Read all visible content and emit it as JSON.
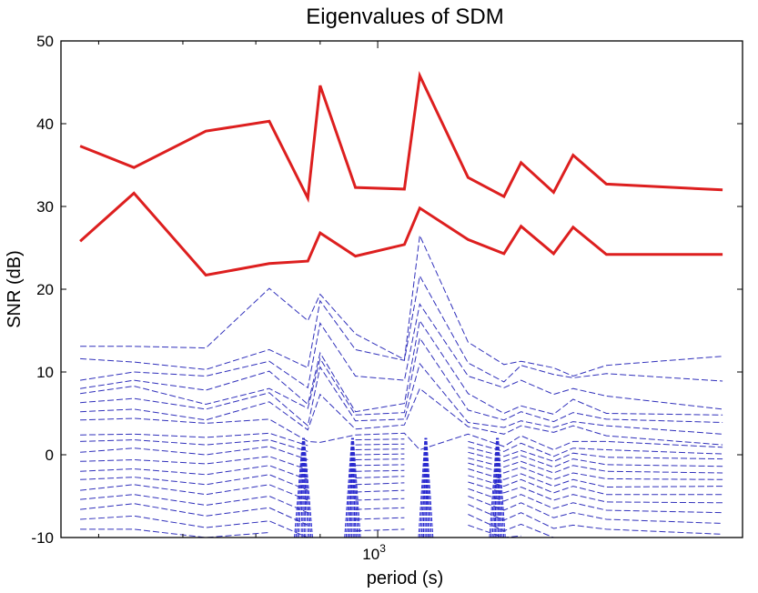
{
  "chart_data": {
    "type": "line",
    "title": "Eigenvalues of SDM",
    "xlabel": "period (s)",
    "ylabel": "SNR (dB)",
    "xscale": "log",
    "xlim": [
      560,
      1950
    ],
    "ylim": [
      -10,
      50
    ],
    "yticks": [
      -10,
      0,
      10,
      20,
      30,
      40,
      50
    ],
    "xtick_label_base": "10",
    "xtick_label_exp": "3",
    "xtick_value": 1000,
    "grid": false,
    "x": [
      580,
      640,
      730,
      820,
      880,
      900,
      960,
      1050,
      1080,
      1180,
      1260,
      1300,
      1380,
      1430,
      1520,
      1880
    ],
    "series": [
      {
        "color": "#dd1f1f",
        "style": "solid",
        "values": [
          37.3,
          34.7,
          39.1,
          40.3,
          31.0,
          44.6,
          32.3,
          32.1,
          45.8,
          33.5,
          31.2,
          35.3,
          31.7,
          36.2,
          32.7,
          32.0
        ]
      },
      {
        "color": "#dd1f1f",
        "style": "solid",
        "values": [
          25.8,
          31.6,
          21.7,
          23.1,
          23.4,
          26.8,
          24.0,
          25.4,
          29.8,
          26.0,
          24.3,
          27.6,
          24.3,
          27.5,
          24.2,
          24.2
        ]
      },
      {
        "color": "#3030bb",
        "style": "dashed",
        "values": [
          13.1,
          13.1,
          12.9,
          20.1,
          16.2,
          19.4,
          14.6,
          11.5,
          26.5,
          13.6,
          10.9,
          11.3,
          10.5,
          9.5,
          10.8,
          11.9
        ]
      },
      {
        "color": "#3030bb",
        "style": "dashed",
        "values": [
          11.6,
          11.2,
          10.3,
          12.7,
          10.5,
          18.6,
          12.7,
          11.4,
          21.6,
          11.1,
          8.8,
          10.8,
          9.7,
          9.3,
          9.8,
          8.9
        ]
      },
      {
        "color": "#3030bb",
        "style": "dashed",
        "values": [
          9.0,
          10.0,
          9.5,
          11.3,
          8.1,
          15.9,
          9.5,
          9.0,
          18.2,
          9.5,
          8.1,
          9.0,
          7.3,
          8.0,
          7.1,
          5.5
        ]
      },
      {
        "color": "#3030bb",
        "style": "dashed",
        "values": [
          8.0,
          9.0,
          7.8,
          10.1,
          6.1,
          12.3,
          5.2,
          6.2,
          16.2,
          7.4,
          5.0,
          5.9,
          4.9,
          6.7,
          5.0,
          4.8
        ]
      },
      {
        "color": "#3030bb",
        "style": "dashed",
        "values": [
          7.4,
          8.3,
          6.1,
          8.0,
          5.6,
          11.6,
          4.8,
          5.1,
          14.1,
          5.4,
          4.2,
          5.2,
          4.0,
          5.1,
          4.3,
          3.9
        ]
      },
      {
        "color": "#3030bb",
        "style": "dashed",
        "values": [
          6.3,
          6.8,
          5.5,
          7.5,
          3.5,
          10.6,
          4.1,
          4.3,
          11.0,
          3.9,
          3.3,
          4.1,
          3.3,
          4.0,
          3.5,
          2.5
        ]
      },
      {
        "color": "#3030bb",
        "style": "dashed",
        "values": [
          5.2,
          5.5,
          4.2,
          6.4,
          3.0,
          7.3,
          3.1,
          3.6,
          8.0,
          3.4,
          2.5,
          3.5,
          2.7,
          3.5,
          2.3,
          1.2
        ]
      },
      {
        "color": "#3030bb",
        "style": "dashed",
        "values": [
          4.2,
          4.4,
          3.8,
          4.3,
          1.6,
          1.5,
          2.4,
          2.6,
          0.6,
          2.5,
          1.0,
          2.3,
          0.6,
          1.6,
          1.6,
          0.9
        ]
      },
      {
        "color": "#3030bb",
        "style": "dashed",
        "values": [
          2.4,
          2.5,
          2.1,
          2.6,
          1.1,
          null,
          1.8,
          1.9,
          null,
          1.6,
          0.4,
          1.4,
          -0.2,
          0.8,
          0.6,
          0.1
        ]
      },
      {
        "color": "#3030bb",
        "style": "dashed",
        "values": [
          1.6,
          1.8,
          1.2,
          1.8,
          0.4,
          null,
          1.2,
          1.3,
          null,
          0.9,
          -0.2,
          0.5,
          -0.8,
          0.2,
          -0.3,
          -0.5
        ]
      },
      {
        "color": "#3030bb",
        "style": "dashed",
        "values": [
          0.3,
          0.8,
          0.0,
          1.0,
          -0.6,
          null,
          0.6,
          0.7,
          null,
          0.3,
          -0.8,
          -0.1,
          -1.5,
          -0.5,
          -1.2,
          -1.4
        ]
      },
      {
        "color": "#3030bb",
        "style": "dashed",
        "values": [
          -0.8,
          -0.6,
          -1.1,
          -0.2,
          -1.8,
          null,
          0.0,
          0.1,
          null,
          -0.4,
          -1.5,
          -0.8,
          -2.2,
          -1.3,
          -2.0,
          -2.2
        ]
      },
      {
        "color": "#3030bb",
        "style": "dashed",
        "values": [
          -2.0,
          -1.7,
          -2.4,
          -1.3,
          -3.0,
          null,
          -0.6,
          -0.5,
          null,
          -1.0,
          -2.2,
          -1.5,
          -3.0,
          -2.2,
          -2.9,
          -3.0
        ]
      },
      {
        "color": "#3030bb",
        "style": "dashed",
        "values": [
          -3.0,
          -2.7,
          -3.6,
          -2.4,
          -4.3,
          null,
          -1.3,
          -1.2,
          null,
          -1.7,
          -3.0,
          -2.3,
          -3.8,
          -3.0,
          -3.9,
          -3.8
        ]
      },
      {
        "color": "#3030bb",
        "style": "dashed",
        "values": [
          -4.3,
          -3.6,
          -4.8,
          -3.6,
          -5.5,
          null,
          -2.0,
          -1.9,
          null,
          -2.5,
          -3.8,
          -3.0,
          -4.6,
          -3.8,
          -4.8,
          -4.8
        ]
      },
      {
        "color": "#3030bb",
        "style": "dashed",
        "values": [
          -5.4,
          -4.8,
          -6.1,
          -5.0,
          -7.0,
          null,
          -2.8,
          -2.6,
          null,
          -3.3,
          -4.6,
          -3.9,
          -5.5,
          -4.8,
          -5.7,
          -5.8
        ]
      },
      {
        "color": "#3030bb",
        "style": "dashed",
        "values": [
          -6.6,
          -5.9,
          -7.4,
          -6.4,
          -8.5,
          null,
          -3.6,
          -3.4,
          null,
          -4.1,
          -5.6,
          -4.8,
          -6.5,
          -5.8,
          -6.7,
          -7.0
        ]
      },
      {
        "color": "#3030bb",
        "style": "dashed",
        "values": [
          -7.8,
          -7.4,
          -8.8,
          -8.0,
          -10.0,
          null,
          -4.5,
          -4.3,
          null,
          -5.0,
          -6.7,
          -5.8,
          -7.6,
          -7.0,
          -7.8,
          -8.3
        ]
      },
      {
        "color": "#3030bb",
        "style": "dashed",
        "values": [
          -9.0,
          -9.0,
          -10.0,
          -9.4,
          null,
          null,
          -5.5,
          -5.3,
          null,
          -6.0,
          -7.9,
          -7.0,
          -8.9,
          -8.5,
          -9.0,
          -9.6
        ]
      },
      {
        "color": "#3030bb",
        "style": "dashed",
        "values": [
          -10.0,
          -10.0,
          null,
          -10.0,
          null,
          null,
          -6.6,
          -6.4,
          null,
          -7.2,
          -9.2,
          -8.4,
          -10.0,
          -10.0,
          -10.0,
          -10.0
        ]
      },
      {
        "color": "#3030bb",
        "style": "dashed",
        "values": [
          null,
          null,
          null,
          null,
          null,
          null,
          -7.8,
          -7.6,
          null,
          -8.5,
          -10.0,
          -9.8,
          null,
          null,
          null,
          null
        ]
      },
      {
        "color": "#3030bb",
        "style": "dashed",
        "values": [
          null,
          null,
          null,
          null,
          null,
          null,
          -9.2,
          -9.0,
          null,
          -10.0,
          null,
          -10.0,
          null,
          null,
          null,
          null
        ]
      }
    ],
    "spikes": [
      {
        "x": [
          862,
          873,
          884
        ],
        "bottom": -10,
        "top": 2.0
      },
      {
        "x": [
          945,
          955,
          965
        ],
        "bottom": -10,
        "top": 2.0
      },
      {
        "x": [
          1082,
          1092,
          1102
        ],
        "bottom": -10,
        "top": 2.0
      },
      {
        "x": [
          1232,
          1245,
          1258
        ],
        "bottom": -10,
        "top": 2.0
      }
    ]
  }
}
